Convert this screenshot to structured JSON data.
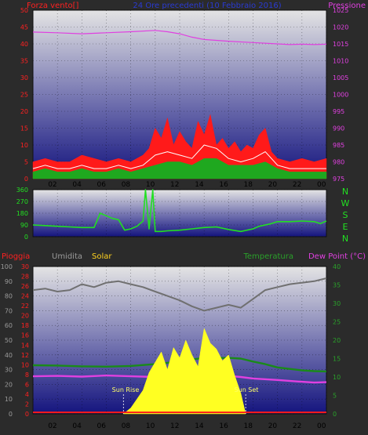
{
  "chart_data": [
    {
      "type": "line",
      "title": "24 Ore precedenti (10 Febbraio 2016)",
      "left_axis_label": "Forza vento[]",
      "right_axis_label": "Pressione",
      "x_tick_labels": [
        "02",
        "04",
        "06",
        "08",
        "10",
        "12",
        "14",
        "16",
        "18",
        "20",
        "22",
        "00"
      ],
      "y_left_ticks": [
        "0",
        "5",
        "10",
        "15",
        "20",
        "25",
        "30",
        "35",
        "40",
        "45",
        "50"
      ],
      "y_left_range": [
        0,
        50
      ],
      "y_right_ticks": [
        "975",
        "980",
        "985",
        "990",
        "995",
        "1000",
        "1005",
        "1010",
        "1015",
        "1020",
        "1025"
      ],
      "y_right_range": [
        975,
        1025
      ],
      "series": [
        {
          "label": "gust",
          "color": "#ff1a1a",
          "x": [
            0,
            1,
            2,
            3,
            4,
            5,
            6,
            7,
            8,
            9,
            9.5,
            10,
            10.5,
            11,
            11.5,
            12,
            12.5,
            13,
            13.5,
            14,
            14.5,
            15,
            15.5,
            16,
            16.5,
            17,
            17.5,
            18,
            18.5,
            19,
            19.5,
            20,
            21,
            22,
            23,
            24
          ],
          "y": [
            5,
            6,
            5,
            5,
            7,
            6,
            5,
            6,
            5,
            7,
            9,
            15,
            12,
            18,
            10,
            14,
            11,
            9,
            17,
            13,
            19,
            10,
            12,
            9,
            11,
            8,
            10,
            9,
            13,
            15,
            8,
            6,
            5,
            6,
            5,
            6
          ]
        },
        {
          "label": "wind",
          "color": "#ffffff",
          "x": [
            0,
            1,
            2,
            3,
            4,
            5,
            6,
            7,
            8,
            9,
            10,
            11,
            12,
            13,
            14,
            15,
            16,
            17,
            18,
            19,
            20,
            21,
            22,
            23,
            24
          ],
          "y": [
            3,
            4,
            3,
            3,
            4,
            3,
            3,
            4,
            3,
            4,
            7,
            8,
            7,
            6,
            10,
            9,
            6,
            5,
            6,
            8,
            4,
            3,
            3,
            3,
            3
          ]
        },
        {
          "label": "wind_avg",
          "color": "#1fa81f",
          "x": [
            0,
            1,
            2,
            3,
            4,
            5,
            6,
            7,
            8,
            9,
            10,
            11,
            12,
            13,
            14,
            15,
            16,
            17,
            18,
            19,
            20,
            21,
            22,
            23,
            24
          ],
          "y": [
            2,
            3,
            2,
            2,
            3,
            2,
            2,
            3,
            2,
            3,
            4,
            5,
            5,
            4,
            6,
            6,
            4,
            4,
            4,
            5,
            3,
            2,
            2,
            2,
            2
          ]
        },
        {
          "label": "pressure",
          "color": "#e040e0",
          "x": [
            0,
            2,
            4,
            6,
            8,
            10,
            11,
            12,
            13,
            14,
            16,
            18,
            20,
            21,
            22,
            23,
            24
          ],
          "y": [
            1018.5,
            1018.3,
            1018,
            1018.3,
            1018.6,
            1019,
            1018.6,
            1018,
            1017,
            1016.3,
            1015.8,
            1015.4,
            1015,
            1014.8,
            1014.9,
            1014.8,
            1014.9
          ]
        }
      ]
    },
    {
      "type": "line",
      "y_ticks": [
        "0",
        "90",
        "180",
        "270",
        "360"
      ],
      "y_range": [
        0,
        360
      ],
      "direction_labels": [
        "N",
        "W",
        "S",
        "E",
        "N"
      ],
      "series": [
        {
          "label": "wind_direction",
          "color": "#22e022",
          "x": [
            0,
            1,
            2,
            3,
            4,
            5,
            5.5,
            6,
            6.5,
            7,
            7.5,
            8,
            8.5,
            9,
            9.2,
            9.5,
            9.8,
            10,
            10.5,
            11,
            12,
            13,
            14,
            15,
            16,
            17,
            18,
            18.5,
            19,
            19.5,
            20,
            20.5,
            21,
            22,
            23,
            23.5,
            24
          ],
          "y": [
            90,
            85,
            80,
            75,
            70,
            70,
            180,
            160,
            140,
            130,
            50,
            60,
            80,
            120,
            360,
            60,
            360,
            40,
            40,
            45,
            50,
            60,
            70,
            75,
            55,
            40,
            60,
            80,
            90,
            100,
            115,
            115,
            115,
            120,
            115,
            100,
            120
          ]
        }
      ]
    },
    {
      "type": "line",
      "labels": {
        "rain": "Pioggia",
        "humidity": "Umidita",
        "solar": "Solar",
        "temperature": "Temperatura",
        "dewpoint": "Dew Point (°C)"
      },
      "y_hum_ticks": [
        "0",
        "10",
        "20",
        "30",
        "40",
        "50",
        "60",
        "70",
        "80",
        "90",
        "100"
      ],
      "y_hum_range": [
        0,
        100
      ],
      "y_rain_ticks": [
        "0",
        "2",
        "4",
        "6",
        "8",
        "10",
        "12",
        "14",
        "16",
        "18",
        "20",
        "22",
        "24",
        "26",
        "28",
        "30"
      ],
      "y_rain_range": [
        0,
        30
      ],
      "y_temp_ticks": [
        "0",
        "5",
        "10",
        "15",
        "20",
        "25",
        "30",
        "35",
        "40"
      ],
      "y_temp_range": [
        0,
        40
      ],
      "annotations": [
        "Sun Rise",
        "Sun Set"
      ],
      "sunrise_x": 7.4,
      "sunset_x": 17.4,
      "series": [
        {
          "label": "humidity",
          "color": "#707070",
          "x": [
            0,
            1,
            2,
            3,
            4,
            5,
            6,
            7,
            8,
            9,
            10,
            11,
            12,
            13,
            14,
            15,
            16,
            17,
            18,
            19,
            20,
            21,
            22,
            23,
            24
          ],
          "y": [
            84,
            85,
            83,
            84,
            88,
            86,
            89,
            90,
            88,
            86,
            83,
            80,
            77,
            73,
            70,
            72,
            74,
            72,
            78,
            84,
            86,
            88,
            89,
            90,
            92
          ]
        },
        {
          "label": "temperature",
          "color": "#1a8a1a",
          "x": [
            0,
            2,
            4,
            6,
            8,
            10,
            12,
            13,
            14,
            16,
            17,
            18,
            19,
            20,
            21,
            22,
            23,
            24
          ],
          "y": [
            13.2,
            13.1,
            12.9,
            12.8,
            13.0,
            13.5,
            14.2,
            14.8,
            15.1,
            15.2,
            15.0,
            14.2,
            13.5,
            12.6,
            12.2,
            11.8,
            11.6,
            11.5
          ]
        },
        {
          "label": "dewpoint",
          "color": "#e040e0",
          "x": [
            0,
            2,
            4,
            6,
            8,
            10,
            12,
            14,
            16,
            17,
            18,
            20,
            22,
            23,
            24
          ],
          "y": [
            10.2,
            10.3,
            10.1,
            10.4,
            10.2,
            10.0,
            10.0,
            10.1,
            10.3,
            10.0,
            9.6,
            9.2,
            8.7,
            8.5,
            8.6
          ]
        },
        {
          "label": "solar",
          "color": "#ffff22",
          "x": [
            7.4,
            8,
            8.5,
            9,
            9.5,
            10,
            10.5,
            11,
            11.5,
            12,
            12.5,
            13,
            13.5,
            14,
            14.5,
            15,
            15.5,
            16,
            16.5,
            17,
            17.4
          ],
          "y": [
            0,
            4,
            10,
            16,
            28,
            35,
            42,
            30,
            45,
            38,
            50,
            40,
            32,
            58,
            48,
            44,
            36,
            40,
            26,
            14,
            0
          ]
        },
        {
          "label": "rain",
          "color": "#ff1a1a",
          "x": [
            0,
            24
          ],
          "y": [
            0.3,
            0.3
          ]
        }
      ]
    }
  ]
}
